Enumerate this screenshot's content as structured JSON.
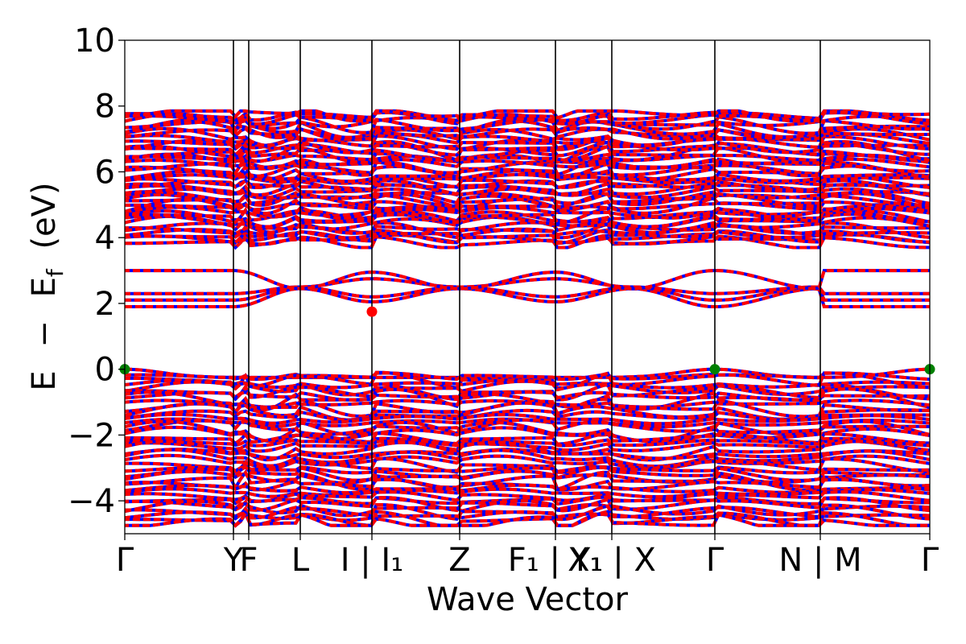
{
  "chart_data": {
    "type": "line",
    "title": "",
    "xlabel": "Wave Vector",
    "ylabel": "E − E_f (eV)",
    "ylabel_parts": [
      "E",
      "−",
      "E",
      "f",
      "(eV)"
    ],
    "ylim": [
      -5,
      10
    ],
    "yticks": [
      -4,
      -2,
      0,
      2,
      4,
      6,
      8,
      10
    ],
    "ytick_labels": [
      "−4",
      "−2",
      "0",
      "2",
      "4",
      "6",
      "8",
      "10"
    ],
    "xlim": [
      0,
      1
    ],
    "kpath": [
      {
        "label": "Γ",
        "x": 0.0
      },
      {
        "label": "Y",
        "x": 0.135
      },
      {
        "label": "F",
        "x": 0.154
      },
      {
        "label": "L",
        "x": 0.218
      },
      {
        "label": "I | I₁",
        "x": 0.307
      },
      {
        "label": "Z",
        "x": 0.416
      },
      {
        "label": "F₁ | Y₁",
        "x": 0.535
      },
      {
        "label": "X₁ | X",
        "x": 0.605
      },
      {
        "label": "Γ",
        "x": 0.733
      },
      {
        "label": "N | M",
        "x": 0.864
      },
      {
        "label": "Γ",
        "x": 1.0
      }
    ],
    "series_style": {
      "spin_up_color": "#ff0000",
      "spin_down_color": "#0000ff",
      "linestyle": "dashed"
    },
    "band_extrema": [
      {
        "kind": "VBM",
        "x": 0.0,
        "y": 0.0,
        "color": "#008000"
      },
      {
        "kind": "VBM",
        "x": 0.733,
        "y": 0.0,
        "color": "#008000"
      },
      {
        "kind": "VBM",
        "x": 1.0,
        "y": 0.0,
        "color": "#008000"
      },
      {
        "kind": "CBM",
        "x": 0.307,
        "y": 1.75,
        "color": "#ff0000"
      }
    ],
    "groups": {
      "upper_conduction": {
        "min": 3.7,
        "max": 7.85,
        "count": 44
      },
      "lower_conduction": [
        {
          "gamma": 1.9,
          "mid": 2.45,
          "i_point": 2.05
        },
        {
          "gamma": 2.1,
          "mid": 2.5,
          "i_point": 2.2
        },
        {
          "gamma": 2.3,
          "mid": 2.5,
          "i_point": 2.75
        },
        {
          "gamma": 3.0,
          "mid": 2.45,
          "i_point": 2.95
        }
      ],
      "valence": {
        "min": -4.75,
        "max": 0.0,
        "count": 40
      }
    }
  }
}
